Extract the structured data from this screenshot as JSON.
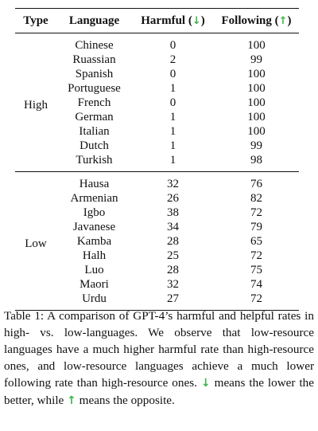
{
  "table": {
    "headers": {
      "type": "Type",
      "language": "Language",
      "harmful": "Harmful",
      "harmful_arrow_open": "(",
      "harmful_arrow": "↓",
      "harmful_arrow_close": ")",
      "following": "Following",
      "following_arrow_open": "(",
      "following_arrow": "↑",
      "following_arrow_close": ")"
    },
    "groups": [
      {
        "type": "High",
        "rows": [
          {
            "language": "Chinese",
            "harmful": "0",
            "following": "100"
          },
          {
            "language": "Ruassian",
            "harmful": "2",
            "following": "99"
          },
          {
            "language": "Spanish",
            "harmful": "0",
            "following": "100"
          },
          {
            "language": "Portuguese",
            "harmful": "1",
            "following": "100"
          },
          {
            "language": "French",
            "harmful": "0",
            "following": "100"
          },
          {
            "language": "German",
            "harmful": "1",
            "following": "100"
          },
          {
            "language": "Italian",
            "harmful": "1",
            "following": "100"
          },
          {
            "language": "Dutch",
            "harmful": "1",
            "following": "99"
          },
          {
            "language": "Turkish",
            "harmful": "1",
            "following": "98"
          }
        ]
      },
      {
        "type": "Low",
        "rows": [
          {
            "language": "Hausa",
            "harmful": "32",
            "following": "76"
          },
          {
            "language": "Armenian",
            "harmful": "26",
            "following": "82"
          },
          {
            "language": "Igbo",
            "harmful": "38",
            "following": "72"
          },
          {
            "language": "Javanese",
            "harmful": "34",
            "following": "79"
          },
          {
            "language": "Kamba",
            "harmful": "28",
            "following": "65"
          },
          {
            "language": "Halh",
            "harmful": "25",
            "following": "72"
          },
          {
            "language": "Luo",
            "harmful": "28",
            "following": "75"
          },
          {
            "language": "Maori",
            "harmful": "32",
            "following": "74"
          },
          {
            "language": "Urdu",
            "harmful": "27",
            "following": "72"
          }
        ]
      }
    ],
    "arrow_color": "#3bb54a"
  },
  "caption": {
    "part1": "Table 1: A comparison of GPT-4’s harmful and helpful rates in high- vs. low-languages. We observe that low-resource languages have a much higher harmful rate than high-resource ones, and low-resource languages achieve a much lower following rate than high-resource ones.",
    "down_arrow": "↓",
    "part2": "means the lower the better, while",
    "up_arrow": "↑",
    "part3": "means the opposite."
  }
}
